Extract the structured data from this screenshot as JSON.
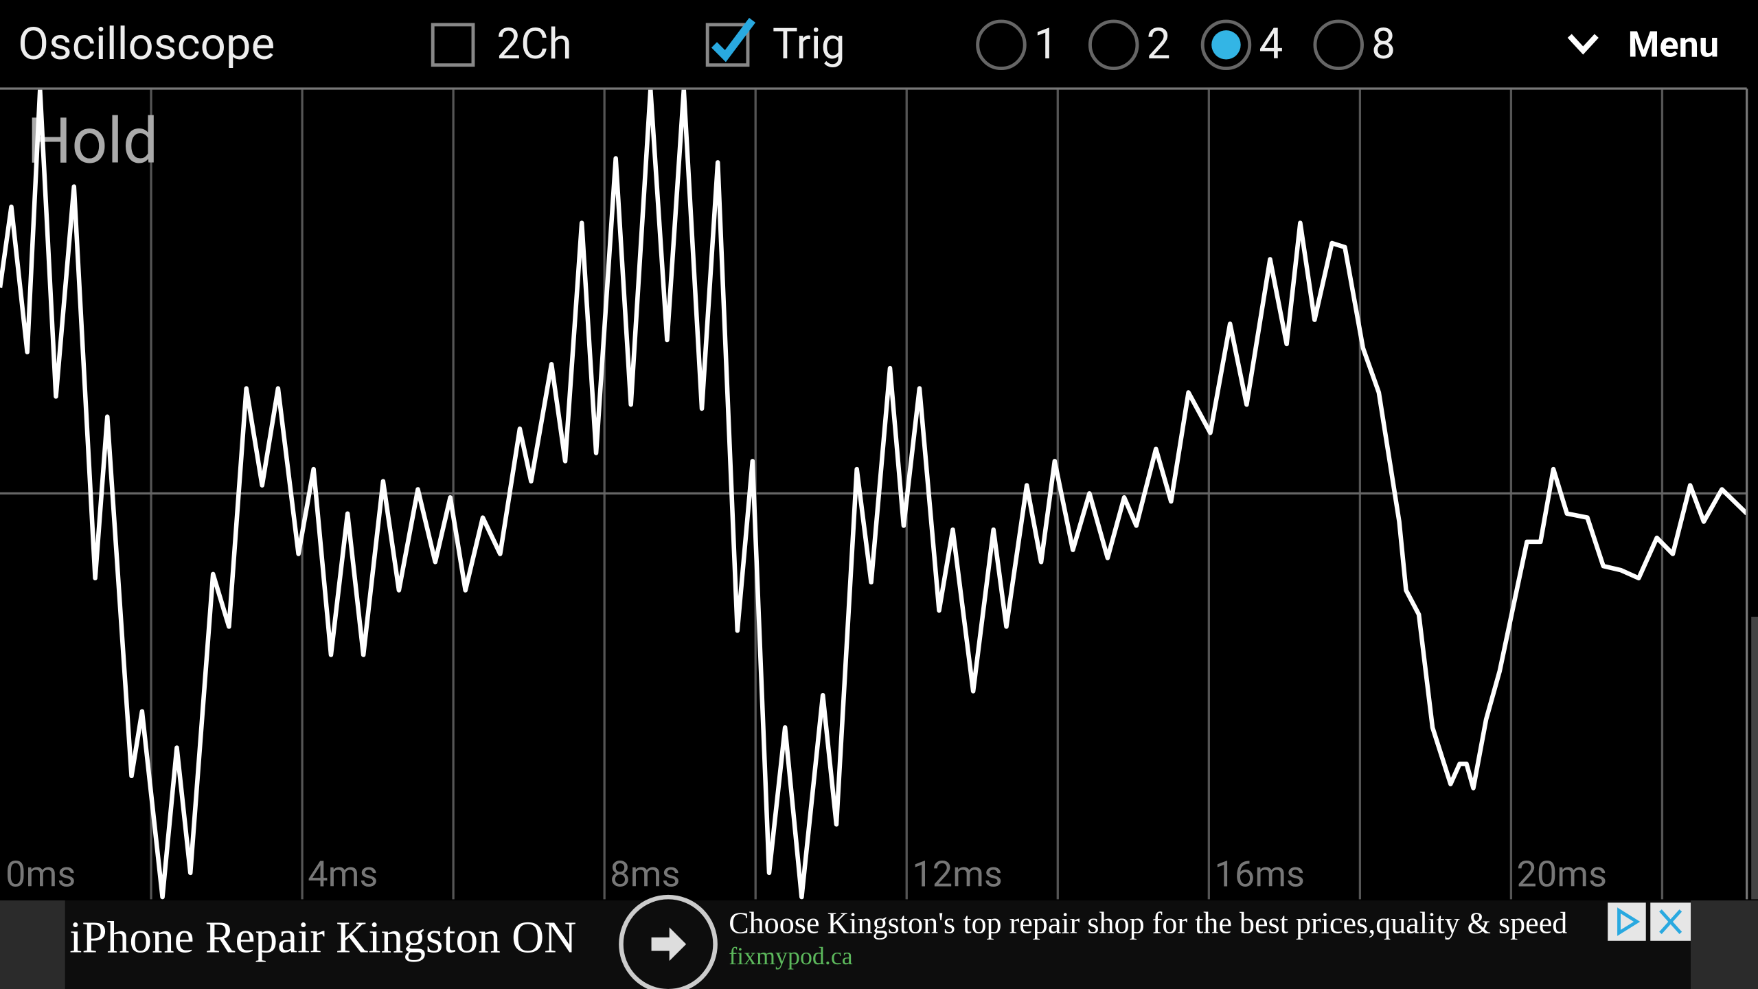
{
  "app_bar": {
    "title": "Oscilloscope",
    "channel_toggle": {
      "label": "2Ch",
      "checked": false
    },
    "trigger_toggle": {
      "label": "Trig",
      "checked": true
    },
    "scale_options": [
      "1",
      "2",
      "4",
      "8"
    ],
    "selected_scale": "4",
    "menu": "Menu"
  },
  "chart_data": {
    "type": "line",
    "annotation": "Hold",
    "x": [
      0.0,
      0.15,
      0.36,
      0.53,
      0.74,
      0.98,
      1.26,
      1.42,
      1.74,
      1.88,
      2.15,
      2.34,
      2.52,
      2.82,
      3.03,
      3.26,
      3.47,
      3.68,
      3.95,
      4.15,
      4.38,
      4.6,
      4.81,
      5.07,
      5.28,
      5.53,
      5.76,
      5.96,
      6.16,
      6.39,
      6.62,
      6.88,
      7.03,
      7.3,
      7.48,
      7.7,
      7.89,
      8.15,
      8.35,
      8.61,
      8.83,
      9.05,
      9.29,
      9.5,
      9.76,
      9.96,
      10.18,
      10.39,
      10.61,
      10.89,
      11.07,
      11.34,
      11.53,
      11.78,
      11.96,
      12.17,
      12.43,
      12.61,
      12.88,
      13.15,
      13.32,
      13.59,
      13.78,
      13.96,
      14.2,
      14.42,
      14.66,
      14.88,
      15.04,
      15.3,
      15.5,
      15.73,
      16.02,
      16.28,
      16.5,
      16.81,
      17.03,
      17.21,
      17.4,
      17.63,
      17.8,
      18.04,
      18.25,
      18.52,
      18.61,
      18.78,
      18.96,
      19.2,
      19.32,
      19.41,
      19.5,
      19.67,
      19.85,
      20.21,
      20.39,
      20.56,
      20.74,
      21.01,
      21.22,
      21.45,
      21.69,
      21.93,
      22.14,
      22.37,
      22.55,
      22.79,
      23.12
    ],
    "series": [
      {
        "color": "#ffffff",
        "values": [
          0.51,
          0.71,
          0.35,
          1.0,
          0.24,
          0.76,
          -0.21,
          0.19,
          -0.7,
          -0.54,
          -1.0,
          -0.63,
          -0.94,
          -0.2,
          -0.33,
          0.26,
          0.02,
          0.26,
          -0.15,
          0.06,
          -0.4,
          -0.05,
          -0.4,
          0.03,
          -0.24,
          0.01,
          -0.17,
          -0.01,
          -0.24,
          -0.06,
          -0.15,
          0.16,
          0.03,
          0.32,
          0.08,
          0.67,
          0.1,
          0.83,
          0.22,
          1.0,
          0.38,
          1.0,
          0.21,
          0.82,
          -0.34,
          0.08,
          -0.94,
          -0.58,
          -1.0,
          -0.5,
          -0.82,
          0.06,
          -0.22,
          0.31,
          -0.08,
          0.26,
          -0.29,
          -0.09,
          -0.49,
          -0.09,
          -0.33,
          0.02,
          -0.17,
          0.08,
          -0.14,
          0.0,
          -0.16,
          -0.01,
          -0.08,
          0.11,
          -0.02,
          0.25,
          0.15,
          0.42,
          0.22,
          0.58,
          0.37,
          0.67,
          0.43,
          0.62,
          0.61,
          0.36,
          0.25,
          -0.07,
          -0.24,
          -0.3,
          -0.58,
          -0.72,
          -0.67,
          -0.67,
          -0.73,
          -0.56,
          -0.44,
          -0.12,
          -0.12,
          0.06,
          -0.05,
          -0.06,
          -0.18,
          -0.19,
          -0.21,
          -0.11,
          -0.15,
          0.02,
          -0.07,
          0.01,
          -0.05
        ]
      }
    ],
    "xlim": [
      0,
      23.12
    ],
    "ylim": [
      -1,
      1
    ],
    "xticks": [
      {
        "value": 0,
        "label": "0ms"
      },
      {
        "value": 4,
        "label": "4ms"
      },
      {
        "value": 8,
        "label": "8ms"
      },
      {
        "value": 12,
        "label": "12ms"
      },
      {
        "value": 16,
        "label": "16ms"
      },
      {
        "value": 20,
        "label": "20ms"
      }
    ],
    "xgrid": [
      2,
      4,
      6,
      8,
      10,
      12,
      14,
      16,
      18,
      20,
      22
    ],
    "yticks": [
      0
    ],
    "grid": true
  },
  "ad": {
    "headline": "iPhone Repair Kingston ON",
    "body": "Choose Kingston's top repair shop for the best prices,quality & speed",
    "url": "fixmypod.ca"
  }
}
